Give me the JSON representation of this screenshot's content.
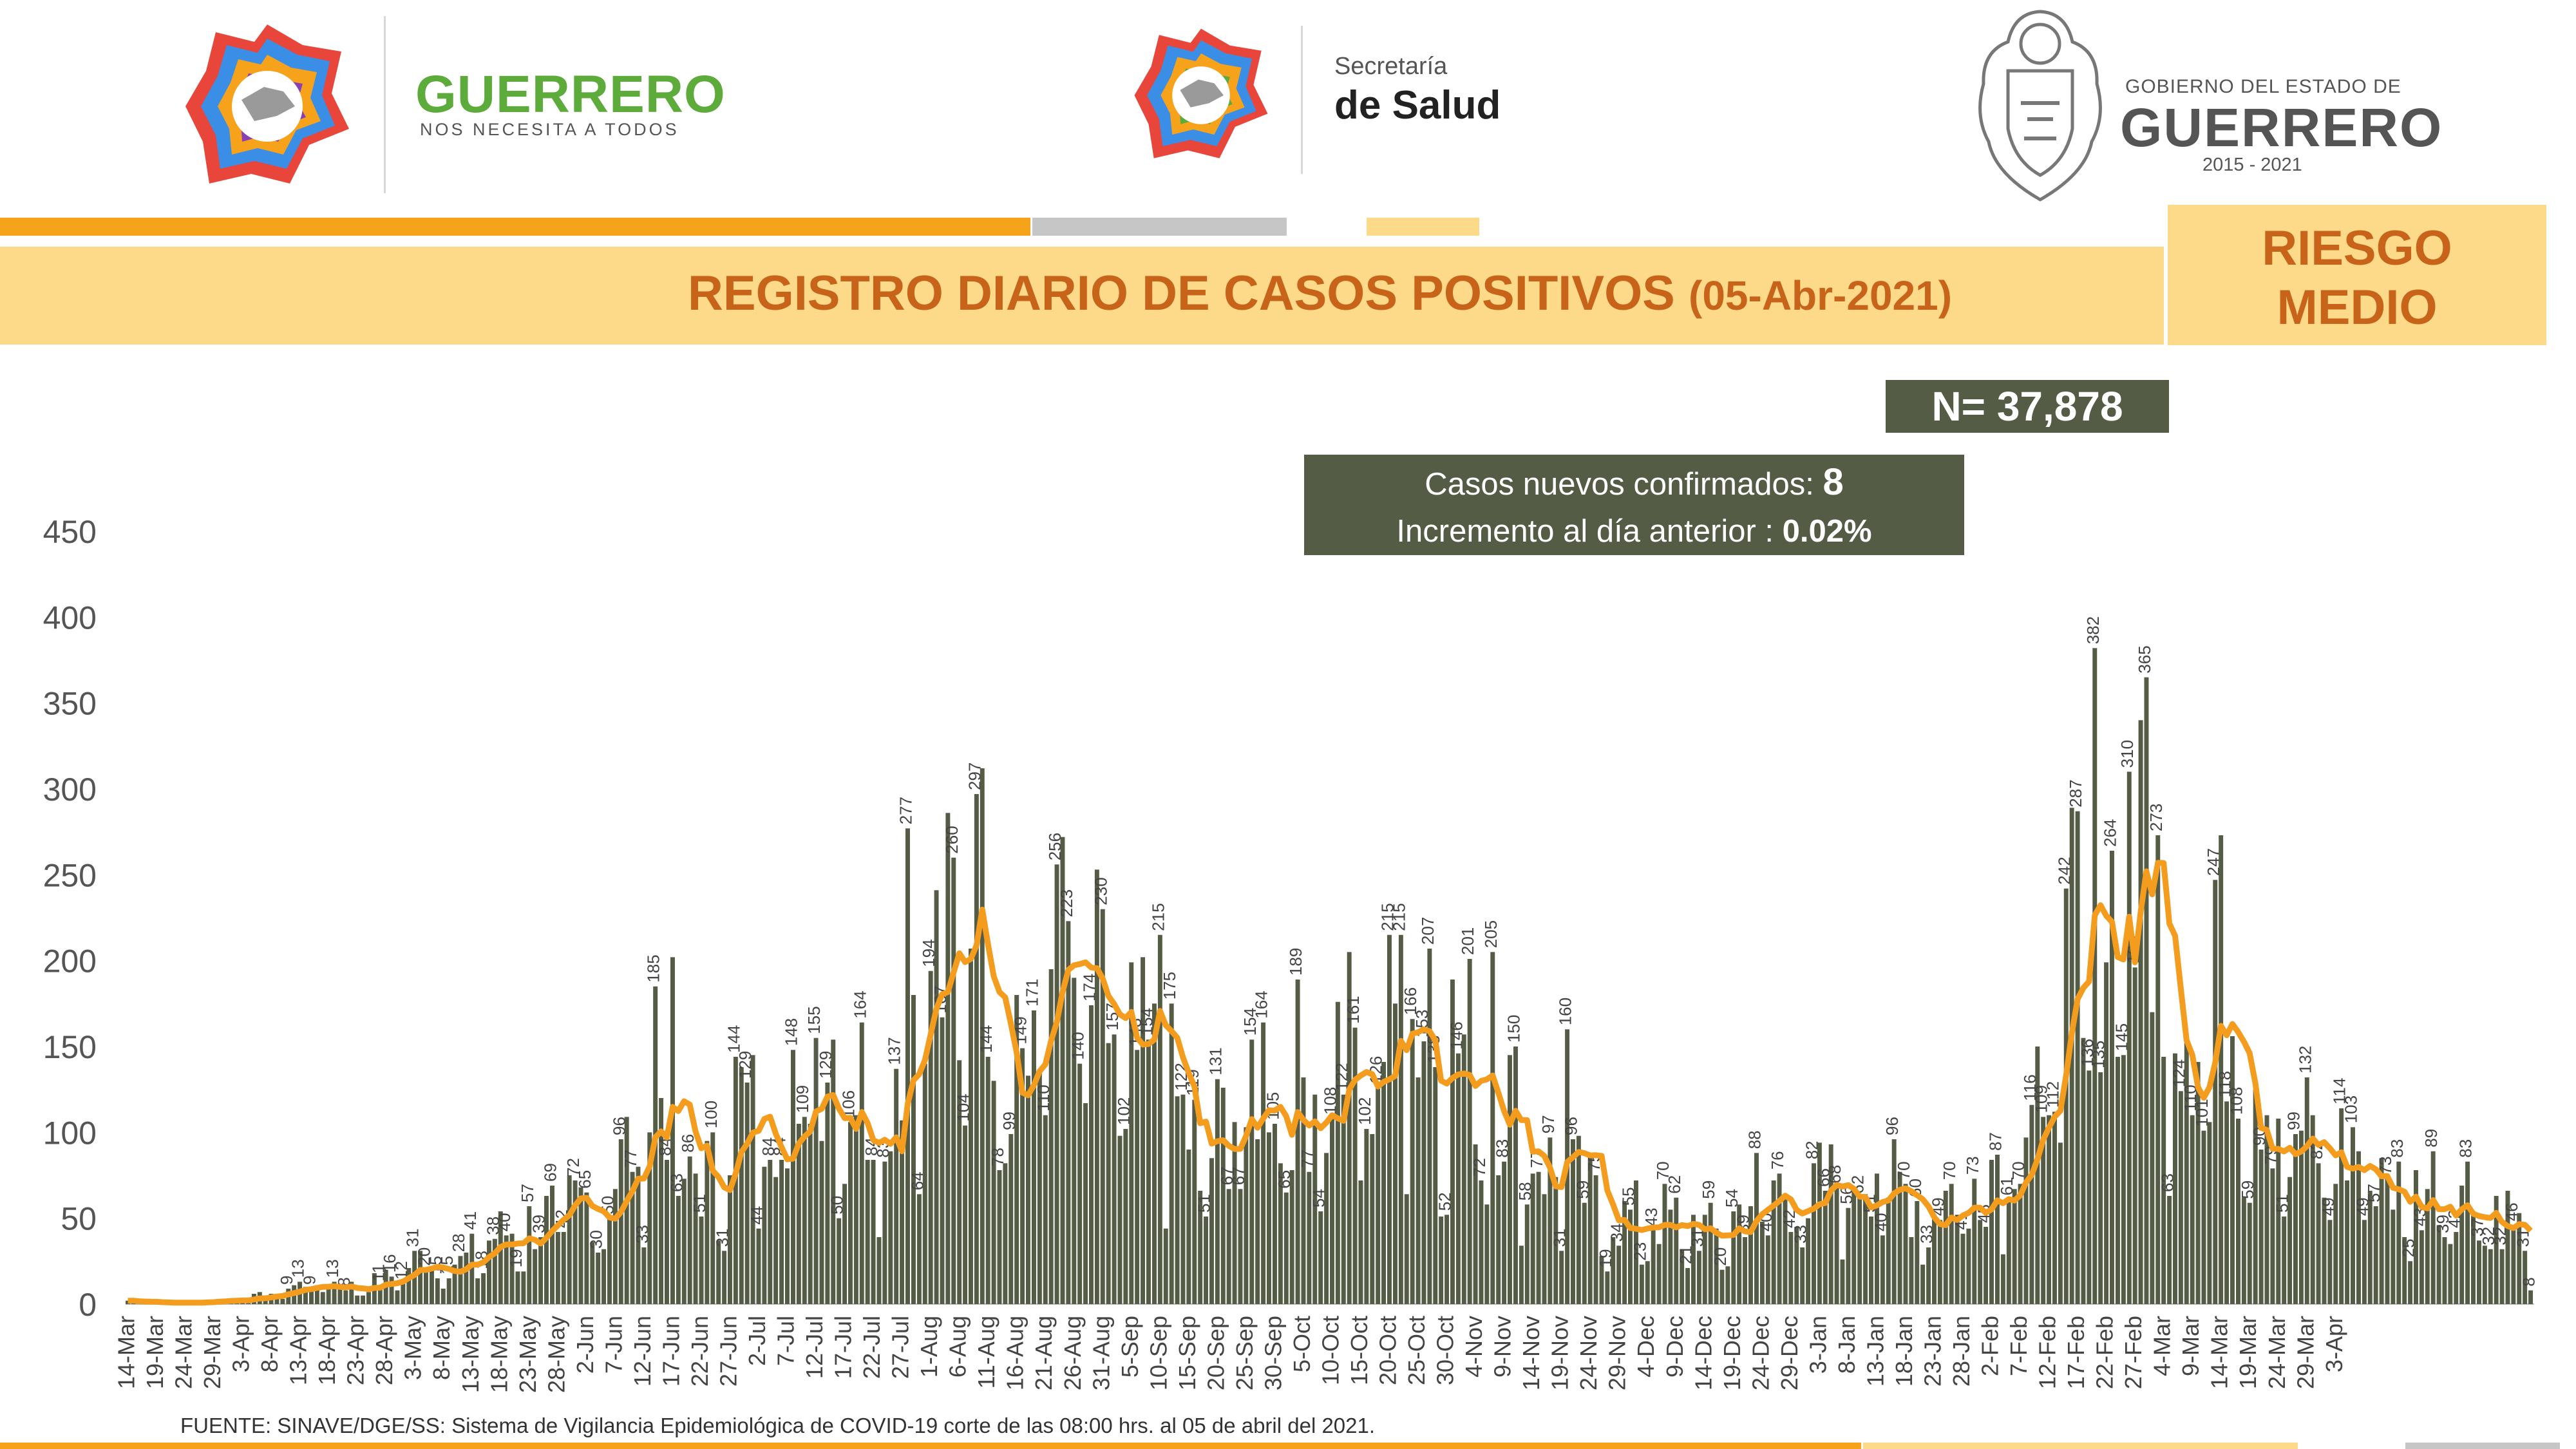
{
  "header": {
    "brand_main": "GUERRERO",
    "brand_sub": "NOS NECESITA A TODOS",
    "secretaria_line1": "Secretaría",
    "secretaria_line2": "de Salud",
    "gobierno_line1": "GOBIERNO DEL ESTADO DE",
    "gobierno_line2": "GUERRERO",
    "gobierno_years": "2015 - 2021"
  },
  "banner": {
    "title": "REGISTRO DIARIO DE CASOS POSITIVOS",
    "date": "(05-Abr-2021)",
    "risk_line1": "RIESGO",
    "risk_line2": "MEDIO"
  },
  "stats": {
    "total": "N= 37,878",
    "new_cases_label": "Casos nuevos confirmados:",
    "new_cases_value": "8",
    "increment_label": "Incremento al día anterior :",
    "increment_value": "0.02%"
  },
  "source": "FUENTE: SINAVE/DGE/SS: Sistema de Vigilancia Epidemiológica de COVID-19 corte de las 08:00 hrs. al 05 de abril del 2021.",
  "colors": {
    "bar": "#555c45",
    "average_line": "#f39c1e",
    "title_text": "#c8631a",
    "band": "#fdd98a",
    "brand_green": "#5cab3b"
  },
  "chart_data": {
    "type": "bar",
    "series_line": "moving average",
    "y_ticks": [
      "0",
      "50",
      "100",
      "150",
      "200",
      "250",
      "300",
      "350",
      "400",
      "450"
    ],
    "ylim": [
      0,
      450
    ],
    "x_tick_labels": [
      "14-Mar",
      "19-Mar",
      "24-Mar",
      "29-Mar",
      "3-Apr",
      "8-Apr",
      "13-Apr",
      "18-Apr",
      "23-Apr",
      "28-Apr",
      "3-May",
      "8-May",
      "13-May",
      "18-May",
      "23-May",
      "28-May",
      "2-Jun",
      "7-Jun",
      "12-Jun",
      "17-Jun",
      "22-Jun",
      "27-Jun",
      "2-Jul",
      "7-Jul",
      "12-Jul",
      "17-Jul",
      "22-Jul",
      "27-Jul",
      "1-Aug",
      "6-Aug",
      "11-Aug",
      "16-Aug",
      "21-Aug",
      "26-Aug",
      "31-Aug",
      "5-Sep",
      "10-Sep",
      "15-Sep",
      "20-Sep",
      "25-Sep",
      "30-Sep",
      "5-Oct",
      "10-Oct",
      "15-Oct",
      "20-Oct",
      "25-Oct",
      "30-Oct",
      "4-Nov",
      "9-Nov",
      "14-Nov",
      "19-Nov",
      "24-Nov",
      "29-Nov",
      "4-Dec",
      "9-Dec",
      "14-Dec",
      "19-Dec",
      "24-Dec",
      "29-Dec",
      "3-Jan",
      "8-Jan",
      "13-Jan",
      "18-Jan",
      "23-Jan",
      "28-Jan",
      "2-Feb",
      "7-Feb",
      "12-Feb",
      "17-Feb",
      "22-Feb",
      "27-Feb",
      "4-Mar",
      "9-Mar",
      "14-Mar",
      "19-Mar",
      "24-Mar",
      "29-Mar",
      "3-Apr"
    ],
    "tick_every_days": 5,
    "anchors": [
      {
        "d": 0,
        "v": 2
      },
      {
        "d": 6,
        "v": 1
      },
      {
        "d": 12,
        "v": 1
      },
      {
        "d": 18,
        "v": 3
      },
      {
        "d": 24,
        "v": 5
      },
      {
        "d": 28,
        "v": 10
      },
      {
        "d": 34,
        "v": 14
      },
      {
        "d": 40,
        "v": 10
      },
      {
        "d": 46,
        "v": 16
      },
      {
        "d": 52,
        "v": 30
      },
      {
        "d": 58,
        "v": 24
      },
      {
        "d": 64,
        "v": 40
      },
      {
        "d": 70,
        "v": 47
      },
      {
        "d": 76,
        "v": 55
      },
      {
        "d": 80,
        "v": 62
      },
      {
        "d": 84,
        "v": 67
      },
      {
        "d": 88,
        "v": 97
      },
      {
        "d": 92,
        "v": 120
      },
      {
        "d": 95,
        "v": 140
      },
      {
        "d": 98,
        "v": 80
      },
      {
        "d": 102,
        "v": 74
      },
      {
        "d": 106,
        "v": 121
      },
      {
        "d": 110,
        "v": 105
      },
      {
        "d": 114,
        "v": 135
      },
      {
        "d": 118,
        "v": 151
      },
      {
        "d": 122,
        "v": 161
      },
      {
        "d": 126,
        "v": 140
      },
      {
        "d": 130,
        "v": 120
      },
      {
        "d": 134,
        "v": 150
      },
      {
        "d": 138,
        "v": 210
      },
      {
        "d": 142,
        "v": 195
      },
      {
        "d": 146,
        "v": 240
      },
      {
        "d": 150,
        "v": 230
      },
      {
        "d": 153,
        "v": 180
      },
      {
        "d": 157,
        "v": 150
      },
      {
        "d": 161,
        "v": 210
      },
      {
        "d": 165,
        "v": 190
      },
      {
        "d": 169,
        "v": 178
      },
      {
        "d": 173,
        "v": 150
      },
      {
        "d": 177,
        "v": 140
      },
      {
        "d": 181,
        "v": 130
      },
      {
        "d": 185,
        "v": 100
      },
      {
        "d": 189,
        "v": 90
      },
      {
        "d": 193,
        "v": 120
      },
      {
        "d": 197,
        "v": 140
      },
      {
        "d": 201,
        "v": 145
      },
      {
        "d": 205,
        "v": 130
      },
      {
        "d": 209,
        "v": 140
      },
      {
        "d": 213,
        "v": 150
      },
      {
        "d": 217,
        "v": 140
      },
      {
        "d": 221,
        "v": 165
      },
      {
        "d": 225,
        "v": 170
      },
      {
        "d": 229,
        "v": 160
      },
      {
        "d": 233,
        "v": 150
      },
      {
        "d": 237,
        "v": 140
      },
      {
        "d": 241,
        "v": 120
      },
      {
        "d": 245,
        "v": 95
      },
      {
        "d": 249,
        "v": 75
      },
      {
        "d": 253,
        "v": 70
      },
      {
        "d": 257,
        "v": 55
      },
      {
        "d": 261,
        "v": 50
      },
      {
        "d": 265,
        "v": 52
      },
      {
        "d": 269,
        "v": 50
      },
      {
        "d": 273,
        "v": 48
      },
      {
        "d": 277,
        "v": 40
      },
      {
        "d": 281,
        "v": 55
      },
      {
        "d": 285,
        "v": 72
      },
      {
        "d": 289,
        "v": 68
      },
      {
        "d": 293,
        "v": 66
      },
      {
        "d": 297,
        "v": 70
      },
      {
        "d": 301,
        "v": 78
      },
      {
        "d": 305,
        "v": 88
      },
      {
        "d": 309,
        "v": 70
      },
      {
        "d": 313,
        "v": 60
      },
      {
        "d": 317,
        "v": 65
      },
      {
        "d": 321,
        "v": 70
      },
      {
        "d": 325,
        "v": 85
      },
      {
        "d": 329,
        "v": 105
      },
      {
        "d": 333,
        "v": 130
      },
      {
        "d": 337,
        "v": 170
      },
      {
        "d": 341,
        "v": 230
      },
      {
        "d": 345,
        "v": 240
      },
      {
        "d": 349,
        "v": 235
      },
      {
        "d": 353,
        "v": 250
      },
      {
        "d": 357,
        "v": 190
      },
      {
        "d": 361,
        "v": 180
      },
      {
        "d": 365,
        "v": 195
      },
      {
        "d": 369,
        "v": 165
      },
      {
        "d": 373,
        "v": 130
      },
      {
        "d": 377,
        "v": 105
      },
      {
        "d": 381,
        "v": 95
      },
      {
        "d": 385,
        "v": 90
      },
      {
        "d": 389,
        "v": 95
      },
      {
        "d": 393,
        "v": 85
      },
      {
        "d": 397,
        "v": 60
      },
      {
        "d": 401,
        "v": 70
      },
      {
        "d": 405,
        "v": 80
      },
      {
        "d": 409,
        "v": 65
      },
      {
        "d": 413,
        "v": 60
      },
      {
        "d": 417,
        "v": 45
      }
    ],
    "peaks": [
      {
        "d": 92,
        "v": 185
      },
      {
        "d": 136,
        "v": 277
      },
      {
        "d": 148,
        "v": 297
      },
      {
        "d": 162,
        "v": 256
      },
      {
        "d": 180,
        "v": 215
      },
      {
        "d": 222,
        "v": 215
      },
      {
        "d": 227,
        "v": 207
      },
      {
        "d": 238,
        "v": 205
      },
      {
        "d": 251,
        "v": 160
      },
      {
        "d": 340,
        "v": 287
      },
      {
        "d": 343,
        "v": 382
      },
      {
        "d": 349,
        "v": 310
      },
      {
        "d": 352,
        "v": 365
      },
      {
        "d": 364,
        "v": 247
      },
      {
        "d": 419,
        "v": 8
      }
    ],
    "last_value": 8,
    "days": 420
  }
}
